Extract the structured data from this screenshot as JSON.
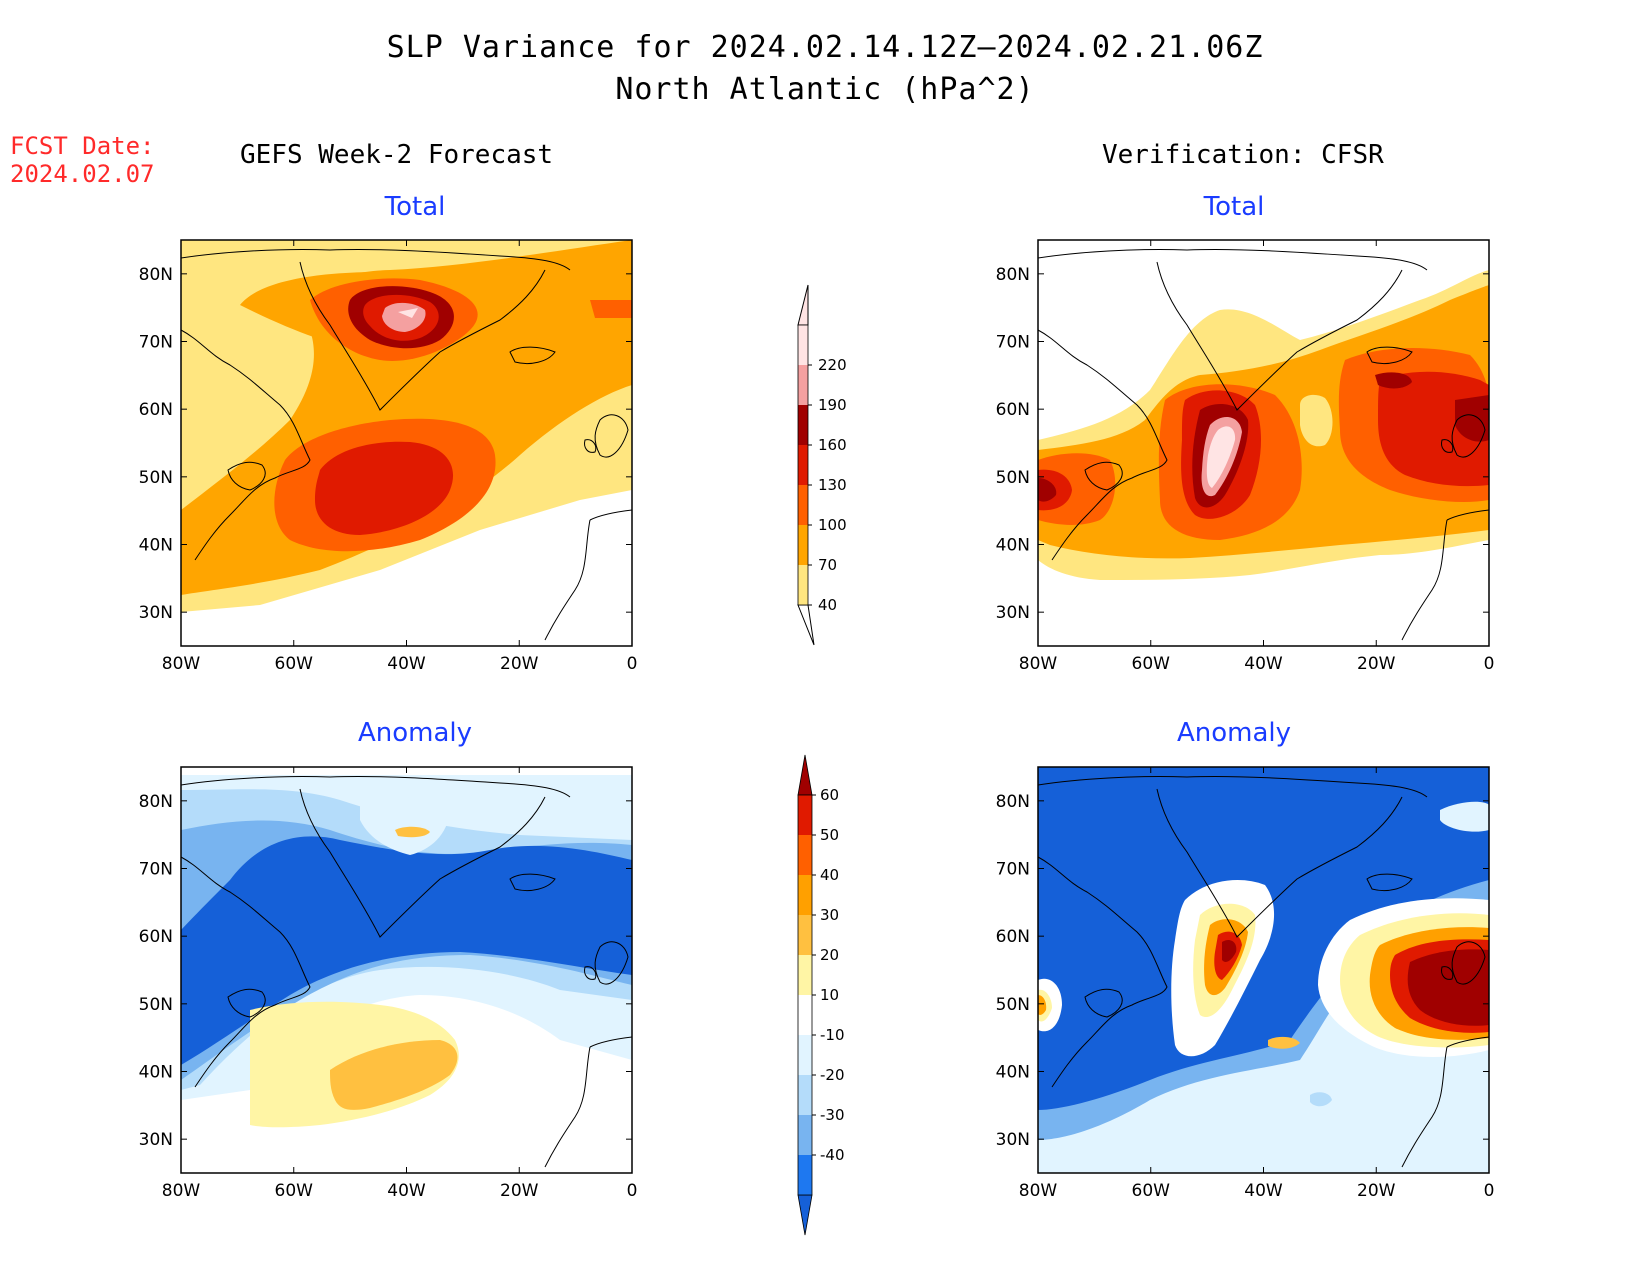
{
  "header": {
    "title_line1": "SLP Variance for 2024.02.14.12Z–2024.02.21.06Z",
    "title_line2": "North Atlantic (hPa^2)",
    "fcst_label": "FCST Date:",
    "fcst_date": "2024.02.07"
  },
  "columns": {
    "left": "GEFS Week-2 Forecast",
    "right": "Verification: CFSR"
  },
  "panels": {
    "top_left": "Total",
    "top_right": "Total",
    "bottom_left": "Anomaly",
    "bottom_right": "Anomaly"
  },
  "axes": {
    "lat_labels": [
      "80N",
      "70N",
      "60N",
      "50N",
      "40N",
      "30N"
    ],
    "lat_values": [
      80,
      70,
      60,
      50,
      40,
      30
    ],
    "lon_labels": [
      "80W",
      "60W",
      "40W",
      "20W",
      "0"
    ],
    "lon_values": [
      -80,
      -60,
      -40,
      -20,
      0
    ],
    "lat_range": [
      25,
      85
    ],
    "lon_range": [
      -80,
      0
    ]
  },
  "colorbar_total": {
    "labels": [
      "40",
      "70",
      "100",
      "130",
      "160",
      "190",
      "220"
    ],
    "colors": [
      "#ffe680",
      "#ffa500",
      "#ff6000",
      "#e01a00",
      "#a00000",
      "#f4a0a0",
      "#ffe4e4"
    ]
  },
  "colorbar_anomaly": {
    "labels": [
      "-40",
      "-30",
      "-20",
      "-10",
      "10",
      "20",
      "30",
      "40",
      "50",
      "60"
    ],
    "colors": [
      "#1560d8",
      "#1e78f0",
      "#78b4f0",
      "#b4dcfa",
      "#e1f4ff",
      "#ffffff",
      "#fff5a5",
      "#ffc040",
      "#ffa000",
      "#ff6000",
      "#e01a00",
      "#a00000"
    ]
  }
}
